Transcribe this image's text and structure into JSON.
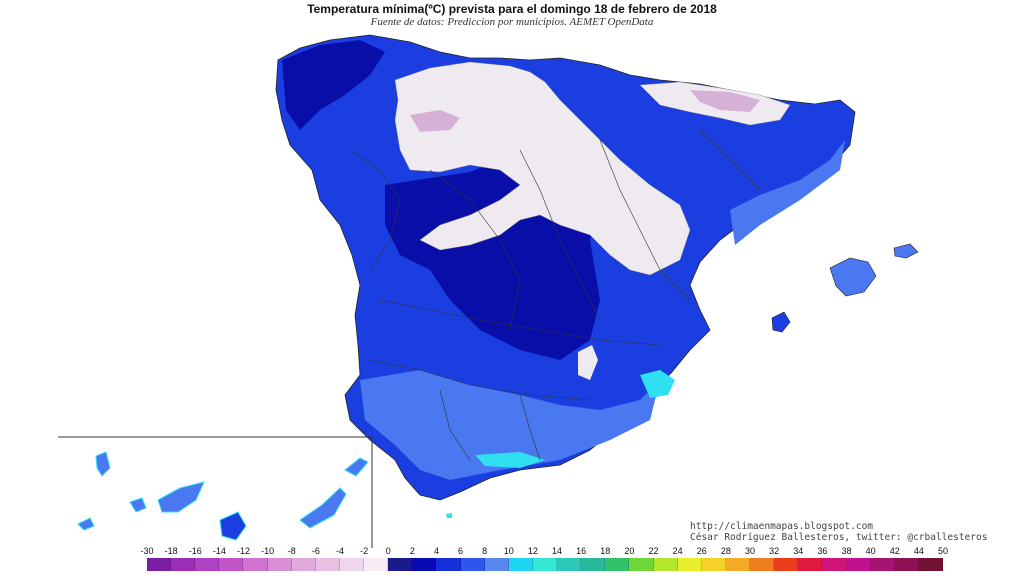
{
  "title": "Temperatura mínima(ºC) prevista para el domingo 18 de febrero de 2018",
  "subtitle": "Fuente de datos: Prediccion por municipios. AEMET OpenData",
  "credits": {
    "line1": "http://climaenmapas.blogspot.com",
    "line2": "César Rodríguez Ballesteros, twitter: @crballesteros"
  },
  "legend": {
    "ticks": [
      "-30",
      "-18",
      "-16",
      "-14",
      "-12",
      "-10",
      "-8",
      "-6",
      "-4",
      "-2",
      "0",
      "2",
      "4",
      "6",
      "8",
      "10",
      "12",
      "14",
      "16",
      "18",
      "20",
      "22",
      "24",
      "26",
      "28",
      "30",
      "32",
      "34",
      "36",
      "38",
      "40",
      "42",
      "44",
      "50"
    ],
    "colors": [
      "#7a1fa2",
      "#9a2fb6",
      "#b040c4",
      "#c256c9",
      "#cf73d0",
      "#d88fd6",
      "#e0a9dc",
      "#e8c0e3",
      "#efd6ec",
      "#f7ecf6",
      "#1a1a8c",
      "#0a0ab4",
      "#1530d8",
      "#2f56ea",
      "#5a86f2",
      "#1fd6f2",
      "#33e6d6",
      "#2cc8b8",
      "#28b89a",
      "#2fc36a",
      "#6fd63a",
      "#b5e62e",
      "#e8ee2a",
      "#f5d22a",
      "#f3aa24",
      "#ee7e20",
      "#ea3e1c",
      "#e01a3e",
      "#d0147a",
      "#c0128e",
      "#a81270",
      "#8e1250",
      "#741034"
    ]
  },
  "colors": {
    "deep_blue": "#0a0ea8",
    "blue": "#1b3ee0",
    "light_blue": "#4a78f0",
    "cyan": "#2fe0f0",
    "frost": "#eeeaf0",
    "purple_frost": "#d6b0d6",
    "border": "#333333"
  }
}
